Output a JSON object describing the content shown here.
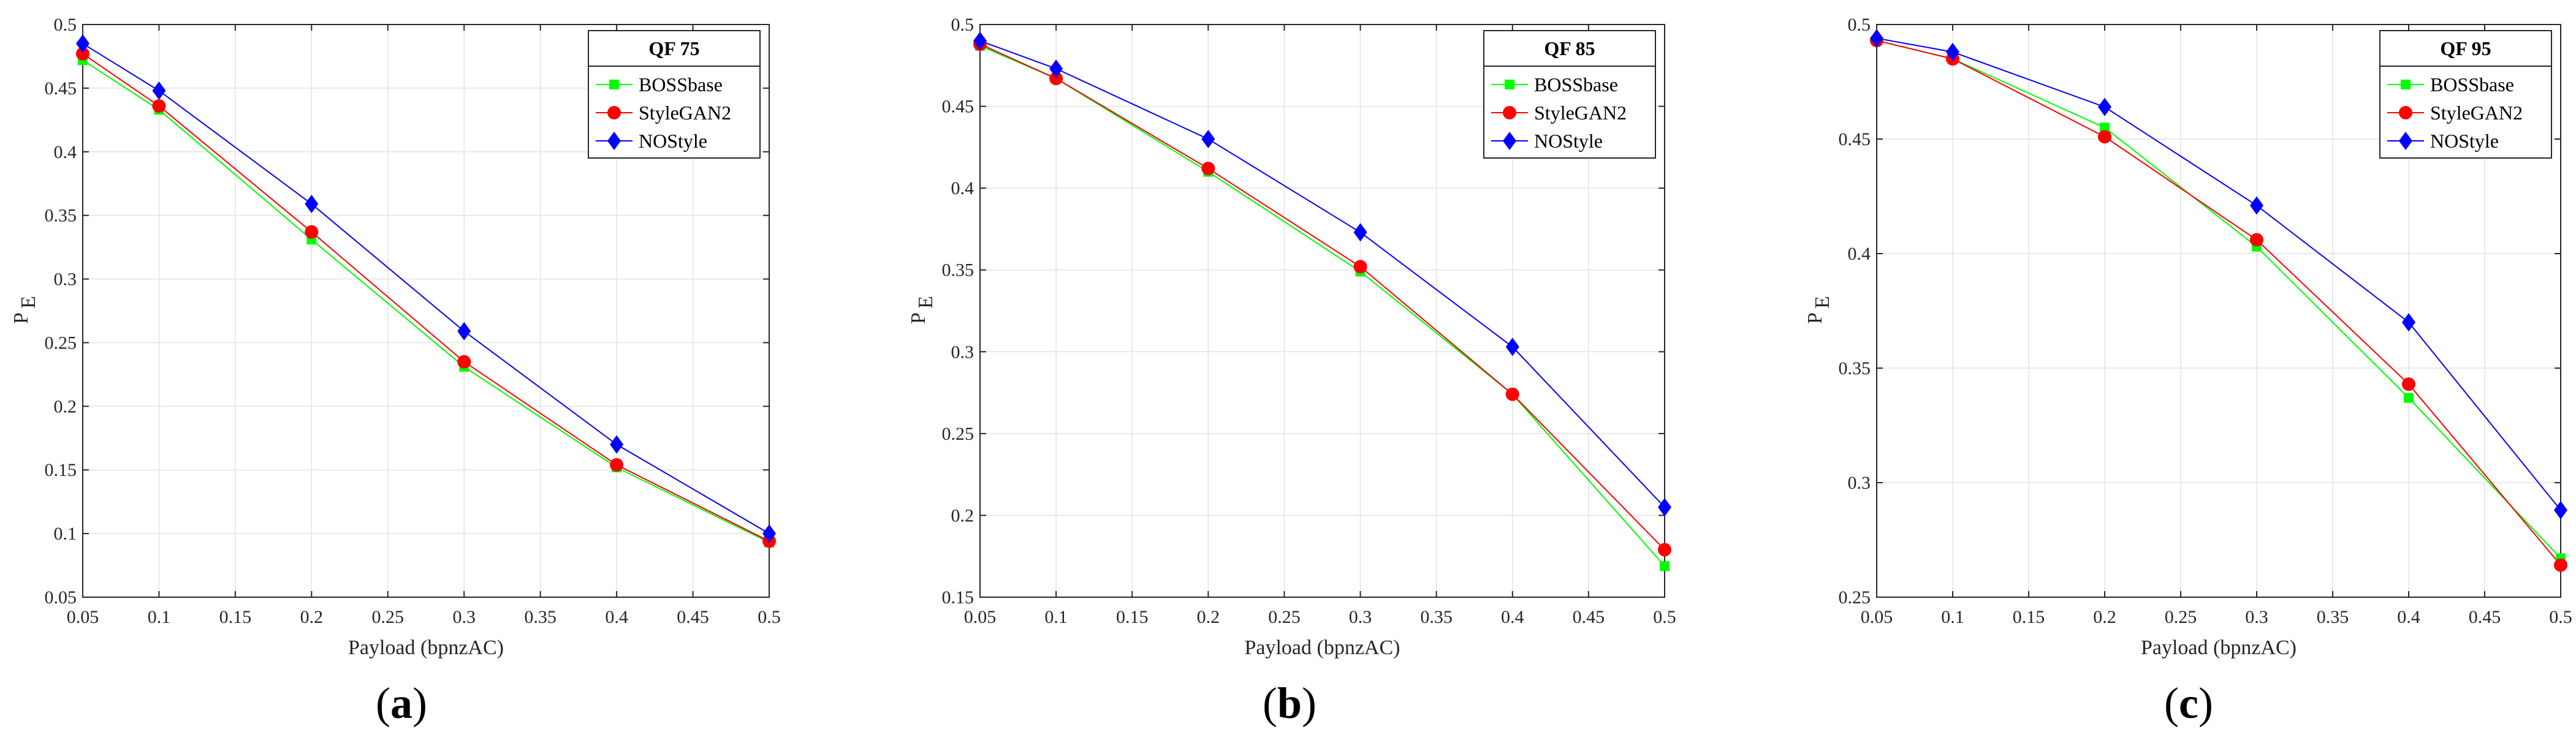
{
  "colors": {
    "BOSSbase": "#00ff00",
    "StyleGAN2": "#ff0000",
    "NOStyle": "#0000ff",
    "marker_BOSSbase": "#00ff00",
    "marker_StyleGAN2": "#ff0000",
    "marker_NOStyle": "#0000ff"
  },
  "chart_data": [
    {
      "type": "line",
      "panel_label": "a",
      "legend_title": "QF 75",
      "legend_position": "top-right",
      "xlabel": "Payload (bpnzAC)",
      "ylabel_main": "P",
      "ylabel_sub": "E",
      "xlim": [
        0.05,
        0.5
      ],
      "ylim": [
        0.05,
        0.5
      ],
      "xticks": [
        "0.05",
        "0.1",
        "0.15",
        "0.2",
        "0.25",
        "0.3",
        "0.35",
        "0.4",
        "0.45",
        "0.5"
      ],
      "yticks": [
        "0.05",
        "0.1",
        "0.15",
        "0.2",
        "0.25",
        "0.3",
        "0.35",
        "0.4",
        "0.45",
        "0.5"
      ],
      "grid": true,
      "x": [
        0.05,
        0.1,
        0.2,
        0.3,
        0.4,
        0.5
      ],
      "series": [
        {
          "name": "BOSSbase",
          "marker": "square",
          "values": [
            0.472,
            0.433,
            0.331,
            0.231,
            0.152,
            0.093
          ]
        },
        {
          "name": "StyleGAN2",
          "marker": "circle",
          "values": [
            0.477,
            0.436,
            0.337,
            0.235,
            0.154,
            0.094
          ]
        },
        {
          "name": "NOStyle",
          "marker": "diamond",
          "values": [
            0.485,
            0.448,
            0.359,
            0.259,
            0.17,
            0.1
          ]
        }
      ]
    },
    {
      "type": "line",
      "panel_label": "b",
      "legend_title": "QF 85",
      "legend_position": "top-right",
      "xlabel": "Payload (bpnzAC)",
      "ylabel_main": "P",
      "ylabel_sub": "E",
      "xlim": [
        0.05,
        0.5
      ],
      "ylim": [
        0.15,
        0.5
      ],
      "xticks": [
        "0.05",
        "0.1",
        "0.15",
        "0.2",
        "0.25",
        "0.3",
        "0.35",
        "0.4",
        "0.45",
        "0.5"
      ],
      "yticks": [
        "0.15",
        "0.2",
        "0.25",
        "0.3",
        "0.35",
        "0.4",
        "0.45",
        "0.5"
      ],
      "grid": true,
      "x": [
        0.05,
        0.1,
        0.2,
        0.3,
        0.4,
        0.5
      ],
      "series": [
        {
          "name": "BOSSbase",
          "marker": "square",
          "values": [
            0.487,
            0.467,
            0.41,
            0.349,
            0.274,
            0.169
          ]
        },
        {
          "name": "StyleGAN2",
          "marker": "circle",
          "values": [
            0.488,
            0.467,
            0.412,
            0.352,
            0.274,
            0.179
          ]
        },
        {
          "name": "NOStyle",
          "marker": "diamond",
          "values": [
            0.49,
            0.473,
            0.43,
            0.373,
            0.303,
            0.205
          ]
        }
      ]
    },
    {
      "type": "line",
      "panel_label": "c",
      "legend_title": "QF 95",
      "legend_position": "top-right",
      "xlabel": "Payload (bpnzAC)",
      "ylabel_main": "P",
      "ylabel_sub": "E",
      "xlim": [
        0.05,
        0.5
      ],
      "ylim": [
        0.25,
        0.5
      ],
      "xticks": [
        "0.05",
        "0.1",
        "0.15",
        "0.2",
        "0.25",
        "0.3",
        "0.35",
        "0.4",
        "0.45",
        "0.5"
      ],
      "yticks": [
        "0.25",
        "0.3",
        "0.35",
        "0.4",
        "0.45",
        "0.5"
      ],
      "grid": true,
      "x": [
        0.05,
        0.1,
        0.2,
        0.3,
        0.4,
        0.5
      ],
      "series": [
        {
          "name": "BOSSbase",
          "marker": "square",
          "values": [
            0.493,
            0.485,
            0.455,
            0.403,
            0.337,
            0.267
          ]
        },
        {
          "name": "StyleGAN2",
          "marker": "circle",
          "values": [
            0.493,
            0.485,
            0.451,
            0.406,
            0.343,
            0.264
          ]
        },
        {
          "name": "NOStyle",
          "marker": "diamond",
          "values": [
            0.494,
            0.488,
            0.464,
            0.421,
            0.37,
            0.288
          ]
        }
      ]
    }
  ]
}
